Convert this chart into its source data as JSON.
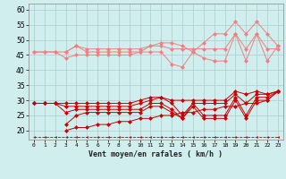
{
  "x": [
    0,
    1,
    2,
    3,
    4,
    5,
    6,
    7,
    8,
    9,
    10,
    11,
    12,
    13,
    14,
    15,
    16,
    17,
    18,
    19,
    20,
    21,
    22,
    23
  ],
  "series_light": [
    [
      46,
      46,
      46,
      46,
      48,
      46,
      46,
      46,
      46,
      46,
      46,
      48,
      49,
      49,
      48,
      46,
      49,
      52,
      52,
      56,
      52,
      56,
      52,
      48
    ],
    [
      46,
      46,
      46,
      44,
      45,
      45,
      45,
      45,
      45,
      45,
      46,
      46,
      46,
      42,
      41,
      46,
      44,
      43,
      43,
      52,
      43,
      52,
      43,
      48
    ],
    [
      null,
      null,
      null,
      46,
      48,
      47,
      47,
      47,
      47,
      47,
      47,
      48,
      48,
      47,
      47,
      47,
      47,
      47,
      47,
      52,
      47,
      52,
      47,
      47
    ]
  ],
  "series_dark": [
    [
      29,
      29,
      29,
      29,
      29,
      29,
      29,
      29,
      29,
      29,
      30,
      31,
      31,
      30,
      30,
      30,
      30,
      30,
      30,
      33,
      32,
      33,
      32,
      33
    ],
    [
      29,
      29,
      29,
      28,
      28,
      28,
      28,
      28,
      28,
      28,
      29,
      30,
      31,
      29,
      25,
      29,
      29,
      29,
      29,
      32,
      29,
      32,
      32,
      33
    ],
    [
      29,
      29,
      29,
      26,
      27,
      27,
      27,
      27,
      27,
      27,
      27,
      29,
      29,
      27,
      24,
      29,
      25,
      25,
      25,
      31,
      25,
      31,
      31,
      33
    ],
    [
      null,
      null,
      null,
      22,
      25,
      26,
      26,
      26,
      26,
      26,
      26,
      28,
      28,
      26,
      24,
      28,
      24,
      24,
      24,
      30,
      24,
      30,
      30,
      33
    ]
  ],
  "series_linear1": [
    null,
    null,
    null,
    20,
    21,
    21,
    22,
    22,
    23,
    23,
    24,
    24,
    25,
    25,
    26,
    26,
    27,
    27,
    28,
    28,
    29,
    29,
    30,
    33
  ],
  "series_dashed": [
    18,
    18,
    18,
    18,
    18,
    18,
    18,
    18,
    18,
    18,
    18,
    18,
    18,
    18,
    18,
    18,
    18,
    18,
    18,
    18,
    18,
    18,
    18,
    18
  ],
  "light_color": "#f08080",
  "dark_color": "#cc0000",
  "dashed_color": "#cc0000",
  "bg_color": "#d0eeee",
  "grid_color": "#aacccc",
  "xlabel": "Vent moyen/en rafales ( km/h )",
  "ylim": [
    17,
    62
  ],
  "xlim": [
    -0.5,
    23.5
  ],
  "yticks": [
    20,
    25,
    30,
    35,
    40,
    45,
    50,
    55,
    60
  ],
  "xticks": [
    0,
    1,
    2,
    3,
    4,
    5,
    6,
    7,
    8,
    9,
    10,
    11,
    12,
    13,
    14,
    15,
    16,
    17,
    18,
    19,
    20,
    21,
    22,
    23
  ],
  "markersize": 2.5
}
